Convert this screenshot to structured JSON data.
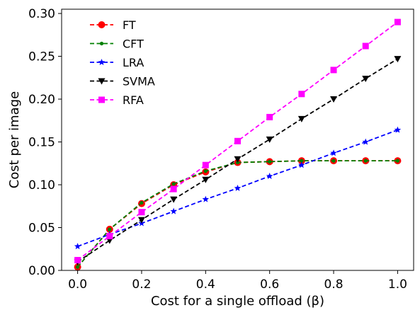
{
  "chart_data": {
    "type": "line",
    "title": "",
    "xlabel": "Cost for a single offload (β)",
    "ylabel": "Cost per image",
    "xlim": [
      -0.05,
      1.05
    ],
    "ylim": [
      0.0,
      0.305
    ],
    "xticks": [
      0.0,
      0.2,
      0.4,
      0.6,
      0.8,
      1.0
    ],
    "xtick_labels": [
      "0.0",
      "0.2",
      "0.4",
      "0.6",
      "0.8",
      "1.0"
    ],
    "yticks": [
      0.0,
      0.05,
      0.1,
      0.15,
      0.2,
      0.25,
      0.3
    ],
    "ytick_labels": [
      "0.00",
      "0.05",
      "0.10",
      "0.15",
      "0.20",
      "0.25",
      "0.30"
    ],
    "grid": false,
    "legend_position": "top-left",
    "x": [
      0.0,
      0.1,
      0.2,
      0.3,
      0.4,
      0.5,
      0.6,
      0.7,
      0.8,
      0.9,
      1.0
    ],
    "series": [
      {
        "name": "FT",
        "color": "#ff0000",
        "marker": "circle",
        "values": [
          0.004,
          0.048,
          0.078,
          0.1,
          0.115,
          0.126,
          0.127,
          0.128,
          0.128,
          0.128,
          0.128
        ]
      },
      {
        "name": "CFT",
        "color": "#008000",
        "marker": "small-circle",
        "values": [
          0.004,
          0.048,
          0.079,
          0.101,
          0.116,
          0.126,
          0.127,
          0.128,
          0.128,
          0.128,
          0.128
        ]
      },
      {
        "name": "LRA",
        "color": "#0000ff",
        "marker": "star",
        "values": [
          0.028,
          0.042,
          0.055,
          0.069,
          0.083,
          0.096,
          0.11,
          0.123,
          0.137,
          0.15,
          0.164
        ]
      },
      {
        "name": "SVMA",
        "color": "#000000",
        "marker": "triangle-down",
        "values": [
          0.01,
          0.035,
          0.059,
          0.083,
          0.106,
          0.13,
          0.153,
          0.177,
          0.2,
          0.224,
          0.247
        ]
      },
      {
        "name": "RFA",
        "color": "#ff00ff",
        "marker": "square",
        "values": [
          0.012,
          0.04,
          0.068,
          0.095,
          0.123,
          0.151,
          0.179,
          0.206,
          0.234,
          0.262,
          0.29
        ]
      }
    ]
  }
}
